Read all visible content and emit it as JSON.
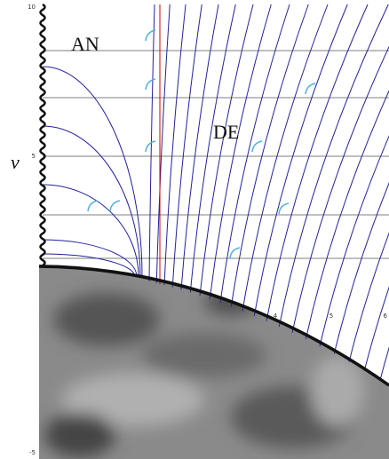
{
  "labels": {
    "an": "AN",
    "de": "DE",
    "axis": "v"
  },
  "y_axis_ticks": [
    "10",
    "5",
    "-5"
  ],
  "x_axis_ticks": [
    "4",
    "5",
    "6"
  ]
}
